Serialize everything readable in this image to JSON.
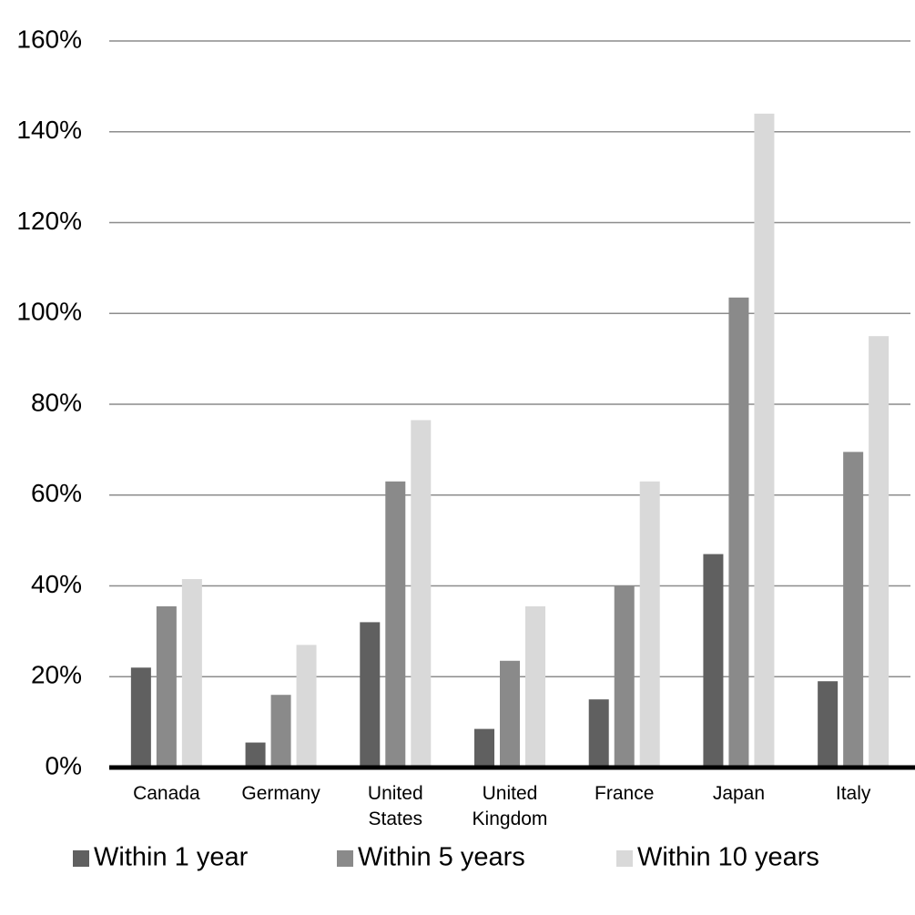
{
  "chart_data": {
    "type": "bar",
    "categories": [
      "Canada",
      "Germany",
      "United States",
      "United Kingdom",
      "France",
      "Japan",
      "Italy"
    ],
    "series": [
      {
        "name": "Within 1 year",
        "color": "#606060",
        "values": [
          22,
          5.5,
          32,
          8.5,
          15,
          47,
          19
        ]
      },
      {
        "name": "Within 5 years",
        "color": "#8a8a8a",
        "values": [
          35.5,
          16,
          63,
          23.5,
          40,
          103.5,
          69.5
        ]
      },
      {
        "name": "Within 10 years",
        "color": "#d9d9d9",
        "values": [
          41.5,
          27,
          76.5,
          35.5,
          63,
          144,
          95
        ]
      }
    ],
    "ylim": [
      0,
      160
    ],
    "yticks": [
      {
        "value": 0,
        "label": "0%"
      },
      {
        "value": 20,
        "label": "20%"
      },
      {
        "value": 40,
        "label": "40%"
      },
      {
        "value": 60,
        "label": "60%"
      },
      {
        "value": 80,
        "label": "80%"
      },
      {
        "value": 100,
        "label": "100%"
      },
      {
        "value": 120,
        "label": "120%"
      },
      {
        "value": 140,
        "label": "140%"
      },
      {
        "value": 160,
        "label": "160%"
      }
    ],
    "grid": true,
    "legend": "bottom"
  }
}
